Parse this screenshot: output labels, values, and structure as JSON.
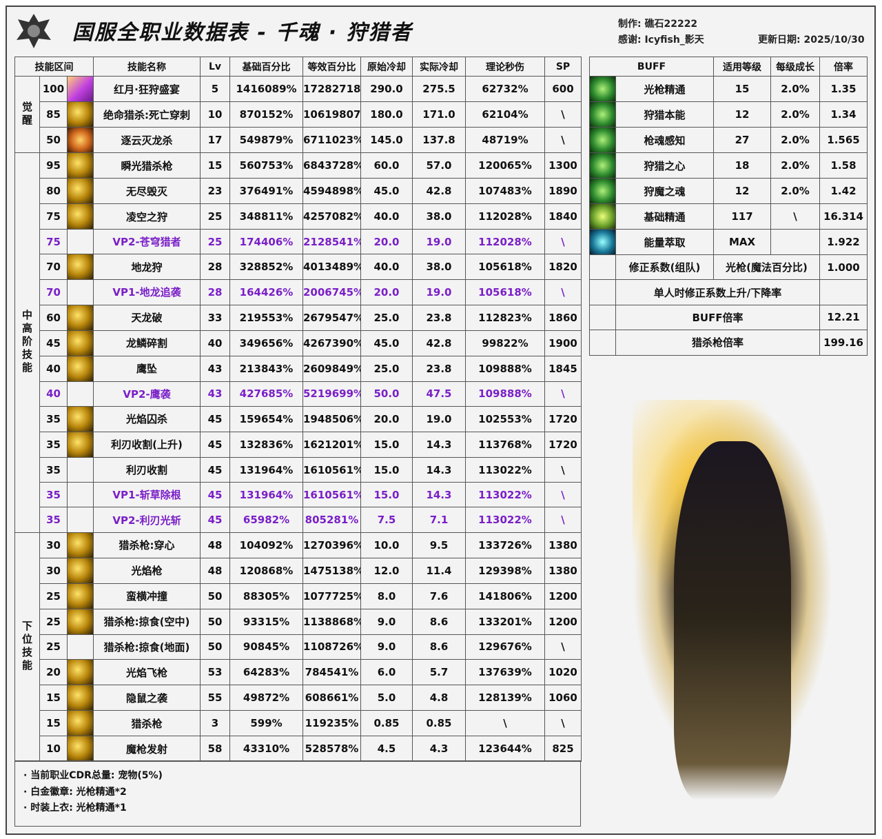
{
  "header": {
    "title": "国服全职业数据表  -  千魂 · 狩猎者",
    "author": "制作: 礁石22222",
    "thanks": "感谢: Icyfish_影天",
    "updated": "更新日期: 2025/10/30"
  },
  "main": {
    "columns": [
      "技能区间",
      "技能名称",
      "Lv",
      "基础百分比",
      "等效百分比",
      "原始冷却",
      "实际冷却",
      "理论秒伤",
      "SP"
    ],
    "sections": [
      {
        "label": "觉醒",
        "count": 3
      },
      {
        "label": "中高阶技能",
        "count": 15
      },
      {
        "label": "下位技能",
        "count": 9
      }
    ],
    "vp_color": "#7a1fc8",
    "rows": [
      {
        "level": "100",
        "icon": "purple",
        "name": "红月·狂狩盛宴",
        "lv": "5",
        "base": "1416089%",
        "equiv": "17282718%",
        "cd": "290.0",
        "cd_real": "275.5",
        "dps": "62732%",
        "sp": "600"
      },
      {
        "level": "85",
        "icon": "gold",
        "name": "绝命猎杀:死亡穿刺",
        "lv": "10",
        "base": "870152%",
        "equiv": "10619807%",
        "cd": "180.0",
        "cd_real": "171.0",
        "dps": "62104%",
        "sp": "\\"
      },
      {
        "level": "50",
        "icon": "orange",
        "name": "逐云灭龙杀",
        "lv": "17",
        "base": "549879%",
        "equiv": "6711023%",
        "cd": "145.0",
        "cd_real": "137.8",
        "dps": "48719%",
        "sp": "\\"
      },
      {
        "level": "95",
        "icon": "gold",
        "name": "瞬光猎杀枪",
        "lv": "15",
        "base": "560753%",
        "equiv": "6843728%",
        "cd": "60.0",
        "cd_real": "57.0",
        "dps": "120065%",
        "sp": "1300"
      },
      {
        "level": "80",
        "icon": "gold",
        "name": "无尽毁灭",
        "lv": "23",
        "base": "376491%",
        "equiv": "4594898%",
        "cd": "45.0",
        "cd_real": "42.8",
        "dps": "107483%",
        "sp": "1890"
      },
      {
        "level": "75",
        "icon": "gold",
        "name": "凌空之狩",
        "lv": "25",
        "base": "348811%",
        "equiv": "4257082%",
        "cd": "40.0",
        "cd_real": "38.0",
        "dps": "112028%",
        "sp": "1840"
      },
      {
        "level": "75",
        "vp": true,
        "name": "VP2-苍穹猎者",
        "lv": "25",
        "base": "174406%",
        "equiv": "2128541%",
        "cd": "20.0",
        "cd_real": "19.0",
        "dps": "112028%",
        "sp": "\\"
      },
      {
        "level": "70",
        "icon": "gold",
        "name": "地龙狩",
        "lv": "28",
        "base": "328852%",
        "equiv": "4013489%",
        "cd": "40.0",
        "cd_real": "38.0",
        "dps": "105618%",
        "sp": "1820"
      },
      {
        "level": "70",
        "vp": true,
        "name": "VP1-地龙追袭",
        "lv": "28",
        "base": "164426%",
        "equiv": "2006745%",
        "cd": "20.0",
        "cd_real": "19.0",
        "dps": "105618%",
        "sp": "\\"
      },
      {
        "level": "60",
        "icon": "gold",
        "name": "天龙破",
        "lv": "33",
        "base": "219553%",
        "equiv": "2679547%",
        "cd": "25.0",
        "cd_real": "23.8",
        "dps": "112823%",
        "sp": "1860"
      },
      {
        "level": "45",
        "icon": "gold",
        "name": "龙鳞碎割",
        "lv": "40",
        "base": "349656%",
        "equiv": "4267390%",
        "cd": "45.0",
        "cd_real": "42.8",
        "dps": "99822%",
        "sp": "1900"
      },
      {
        "level": "40",
        "icon": "gold",
        "name": "鹰坠",
        "lv": "43",
        "base": "213843%",
        "equiv": "2609849%",
        "cd": "25.0",
        "cd_real": "23.8",
        "dps": "109888%",
        "sp": "1845"
      },
      {
        "level": "40",
        "vp": true,
        "name": "VP2-鹰袭",
        "lv": "43",
        "base": "427685%",
        "equiv": "5219699%",
        "cd": "50.0",
        "cd_real": "47.5",
        "dps": "109888%",
        "sp": "\\"
      },
      {
        "level": "35",
        "icon": "gold",
        "name": "光焰囚杀",
        "lv": "45",
        "base": "159654%",
        "equiv": "1948506%",
        "cd": "20.0",
        "cd_real": "19.0",
        "dps": "102553%",
        "sp": "1720"
      },
      {
        "level": "35",
        "icon": "gold",
        "name": "利刃收割(上升)",
        "lv": "45",
        "base": "132836%",
        "equiv": "1621201%",
        "cd": "15.0",
        "cd_real": "14.3",
        "dps": "113768%",
        "sp": "1720"
      },
      {
        "level": "35",
        "name": "利刃收割",
        "lv": "45",
        "base": "131964%",
        "equiv": "1610561%",
        "cd": "15.0",
        "cd_real": "14.3",
        "dps": "113022%",
        "sp": "\\"
      },
      {
        "level": "35",
        "vp": true,
        "name": "VP1-斩草除根",
        "lv": "45",
        "base": "131964%",
        "equiv": "1610561%",
        "cd": "15.0",
        "cd_real": "14.3",
        "dps": "113022%",
        "sp": "\\"
      },
      {
        "level": "35",
        "vp": true,
        "name": "VP2-利刃光斩",
        "lv": "45",
        "base": "65982%",
        "equiv": "805281%",
        "cd": "7.5",
        "cd_real": "7.1",
        "dps": "113022%",
        "sp": "\\"
      },
      {
        "level": "30",
        "icon": "gold",
        "name": "猎杀枪:穿心",
        "lv": "48",
        "base": "104092%",
        "equiv": "1270396%",
        "cd": "10.0",
        "cd_real": "9.5",
        "dps": "133726%",
        "sp": "1380"
      },
      {
        "level": "30",
        "icon": "gold",
        "name": "光焰枪",
        "lv": "48",
        "base": "120868%",
        "equiv": "1475138%",
        "cd": "12.0",
        "cd_real": "11.4",
        "dps": "129398%",
        "sp": "1380"
      },
      {
        "level": "25",
        "icon": "gold",
        "name": "蛮横冲撞",
        "lv": "50",
        "base": "88305%",
        "equiv": "1077725%",
        "cd": "8.0",
        "cd_real": "7.6",
        "dps": "141806%",
        "sp": "1200"
      },
      {
        "level": "25",
        "icon": "gold",
        "name": "猎杀枪:掠食(空中)",
        "lv": "50",
        "base": "93315%",
        "equiv": "1138868%",
        "cd": "9.0",
        "cd_real": "8.6",
        "dps": "133201%",
        "sp": "1200"
      },
      {
        "level": "25",
        "name": "猎杀枪:掠食(地面)",
        "lv": "50",
        "base": "90845%",
        "equiv": "1108726%",
        "cd": "9.0",
        "cd_real": "8.6",
        "dps": "129676%",
        "sp": "\\"
      },
      {
        "level": "20",
        "icon": "gold",
        "name": "光焰飞枪",
        "lv": "53",
        "base": "64283%",
        "equiv": "784541%",
        "cd": "6.0",
        "cd_real": "5.7",
        "dps": "137639%",
        "sp": "1020"
      },
      {
        "level": "15",
        "icon": "gold",
        "name": "隐鼠之袭",
        "lv": "55",
        "base": "49872%",
        "equiv": "608661%",
        "cd": "5.0",
        "cd_real": "4.8",
        "dps": "128139%",
        "sp": "1060"
      },
      {
        "level": "15",
        "icon": "gold",
        "name": "猎杀枪",
        "lv": "3",
        "base": "599%",
        "equiv": "119235%",
        "cd": "0.85",
        "cd_real": "0.85",
        "dps": "\\",
        "sp": "\\"
      },
      {
        "level": "10",
        "icon": "gold",
        "name": "魔枪发射",
        "lv": "58",
        "base": "43310%",
        "equiv": "528578%",
        "cd": "4.5",
        "cd_real": "4.3",
        "dps": "123644%",
        "sp": "825"
      }
    ]
  },
  "buff": {
    "columns": [
      "BUFF",
      "适用等级",
      "每级成长",
      "倍率"
    ],
    "rows": [
      {
        "icon": "green",
        "name": "光枪精通",
        "level": "15",
        "growth": "2.0%",
        "ratio": "1.35"
      },
      {
        "icon": "green",
        "name": "狩猎本能",
        "level": "12",
        "growth": "2.0%",
        "ratio": "1.34"
      },
      {
        "icon": "green",
        "name": "枪魂感知",
        "level": "27",
        "growth": "2.0%",
        "ratio": "1.565"
      },
      {
        "icon": "green",
        "name": "狩猎之心",
        "level": "18",
        "growth": "2.0%",
        "ratio": "1.58"
      },
      {
        "icon": "green",
        "name": "狩魔之魂",
        "level": "12",
        "growth": "2.0%",
        "ratio": "1.42"
      },
      {
        "icon": "lime",
        "name": "基础精通",
        "level": "117",
        "growth": "\\",
        "ratio": "16.314"
      },
      {
        "icon": "cyan",
        "name": "能量萃取",
        "level": "MAX",
        "growth": "",
        "ratio": "1.922"
      }
    ],
    "correction": {
      "label": "修正系数(组队)",
      "type": "光枪(魔法百分比)",
      "value": "1.000"
    },
    "solo_rate": {
      "label": "单人时修正系数上升/下降率",
      "value": ""
    },
    "buff_rate": {
      "label": "BUFF倍率",
      "value": "12.21"
    },
    "skill_rate": {
      "label": "猎杀枪倍率",
      "value": "199.16"
    }
  },
  "notes": [
    "· 当前职业CDR总量: 宠物(5%)",
    "· 白金徽章: 光枪精通*2",
    "· 时装上衣: 光枪精通*1"
  ]
}
